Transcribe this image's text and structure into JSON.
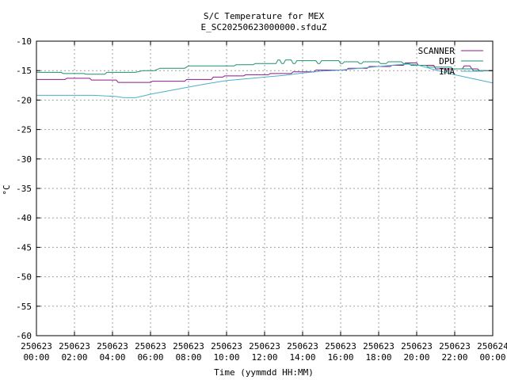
{
  "chart_data": {
    "type": "line",
    "title": "S/C Temperature for MEX",
    "subtitle": "E_SC20250623000000.sfduZ",
    "xlabel": "Time (yymmdd HH:MM)",
    "ylabel": "°C",
    "xlim": [
      0,
      24
    ],
    "ylim": [
      -60,
      -10
    ],
    "y_ticks": [
      -10,
      -15,
      -20,
      -25,
      -30,
      -35,
      -40,
      -45,
      -50,
      -55,
      -60
    ],
    "x_tick_labels": [
      {
        "date": "250623",
        "time": "00:00"
      },
      {
        "date": "250623",
        "time": "02:00"
      },
      {
        "date": "250623",
        "time": "04:00"
      },
      {
        "date": "250623",
        "time": "06:00"
      },
      {
        "date": "250623",
        "time": "08:00"
      },
      {
        "date": "250623",
        "time": "10:00"
      },
      {
        "date": "250623",
        "time": "12:00"
      },
      {
        "date": "250623",
        "time": "14:00"
      },
      {
        "date": "250623",
        "time": "16:00"
      },
      {
        "date": "250623",
        "time": "18:00"
      },
      {
        "date": "250623",
        "time": "20:00"
      },
      {
        "date": "250623",
        "time": "22:00"
      },
      {
        "date": "250624",
        "time": "00:00"
      }
    ],
    "grid": true,
    "legend_position": "top-right",
    "series": [
      {
        "name": "SCANNER",
        "color": "#8b1a8b",
        "x": [
          0,
          1.5,
          1.6,
          2.8,
          2.9,
          4.2,
          4.3,
          6.0,
          6.1,
          7.8,
          7.9,
          9.2,
          9.3,
          9.8,
          9.9,
          10.9,
          11.0,
          12.2,
          12.3,
          13.4,
          13.5,
          14.6,
          14.7,
          16.3,
          16.4,
          17.4,
          17.5,
          18.6,
          18.7,
          19.3,
          19.4,
          20.0,
          20.1,
          20.9,
          21.0,
          22.4,
          22.5,
          22.8,
          22.9,
          23.2,
          23.3,
          24.0
        ],
        "y": [
          -16.5,
          -16.5,
          -16.3,
          -16.3,
          -16.6,
          -16.6,
          -17.0,
          -17.0,
          -16.8,
          -16.8,
          -16.5,
          -16.5,
          -16.1,
          -16.1,
          -15.9,
          -15.9,
          -15.7,
          -15.7,
          -15.5,
          -15.5,
          -15.2,
          -15.2,
          -14.9,
          -14.9,
          -14.6,
          -14.6,
          -14.3,
          -14.3,
          -14.1,
          -14.1,
          -13.7,
          -13.7,
          -14.1,
          -14.1,
          -14.7,
          -14.7,
          -14.2,
          -14.2,
          -14.7,
          -14.7,
          -15.0,
          -15.0
        ]
      },
      {
        "name": "DPU",
        "color": "#1f8f74",
        "x": [
          0,
          1.3,
          1.4,
          2.5,
          2.6,
          3.6,
          3.7,
          5.2,
          5.6,
          6.2,
          6.5,
          7.8,
          8.0,
          10.4,
          10.5,
          11.4,
          11.5,
          12.6,
          12.7,
          12.8,
          12.9,
          13.0,
          13.1,
          13.4,
          13.5,
          13.6,
          13.7,
          14.7,
          14.8,
          14.9,
          15.0,
          15.9,
          16.0,
          16.1,
          16.2,
          16.9,
          17.0,
          17.1,
          17.2,
          18.0,
          18.1,
          18.4,
          18.5,
          19.2,
          19.3,
          19.6,
          19.7,
          20.5,
          20.6,
          21.8,
          21.9,
          22.9,
          23.0,
          24.0
        ],
        "y": [
          -15.3,
          -15.3,
          -15.5,
          -15.5,
          -15.6,
          -15.6,
          -15.3,
          -15.3,
          -15.0,
          -15.0,
          -14.6,
          -14.6,
          -14.2,
          -14.2,
          -14.0,
          -14.0,
          -13.8,
          -13.8,
          -13.2,
          -13.2,
          -13.8,
          -13.8,
          -13.2,
          -13.2,
          -13.8,
          -13.8,
          -13.3,
          -13.3,
          -13.8,
          -13.8,
          -13.3,
          -13.3,
          -13.8,
          -13.8,
          -13.5,
          -13.5,
          -13.8,
          -13.8,
          -13.5,
          -13.5,
          -13.8,
          -13.8,
          -13.5,
          -13.5,
          -13.8,
          -13.8,
          -14.1,
          -14.1,
          -14.4,
          -14.4,
          -14.7,
          -14.7,
          -15.0,
          -15.0
        ]
      },
      {
        "name": "IMA",
        "color": "#4bb0c8",
        "x": [
          0,
          3.0,
          4.2,
          4.6,
          5.2,
          5.5,
          6.0,
          7.0,
          8.0,
          9.0,
          10.0,
          11.0,
          12.0,
          13.0,
          14.0,
          15.0,
          16.0,
          17.0,
          18.0,
          19.0,
          19.5,
          20.0,
          21.0,
          22.0,
          23.0,
          24.0
        ],
        "y": [
          -19.2,
          -19.2,
          -19.4,
          -19.6,
          -19.6,
          -19.4,
          -19.0,
          -18.4,
          -17.8,
          -17.2,
          -16.7,
          -16.4,
          -16.1,
          -15.8,
          -15.4,
          -15.1,
          -14.9,
          -14.6,
          -14.3,
          -14.0,
          -13.9,
          -14.0,
          -14.9,
          -15.7,
          -16.4,
          -17.1
        ]
      }
    ]
  }
}
